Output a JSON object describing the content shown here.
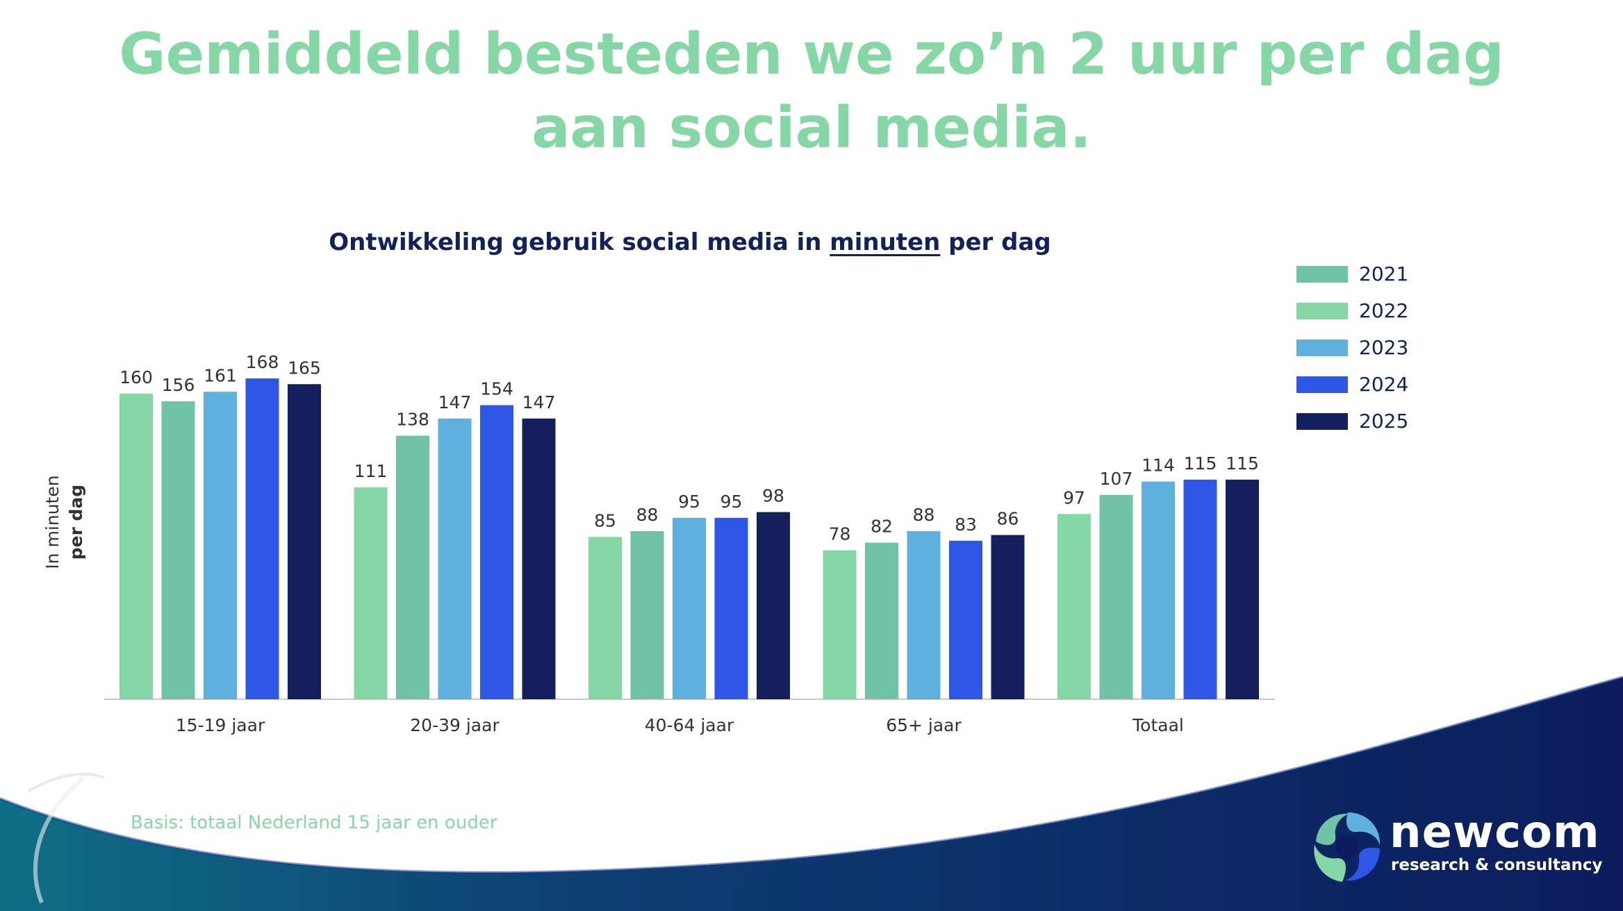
{
  "headline": "Gemiddeld besteden we zo’n 2 uur per dag aan social media.",
  "chart_data": {
    "type": "bar",
    "title_parts": [
      "Ontwikkeling gebruik social media in ",
      "minuten",
      " per dag"
    ],
    "ylabel_lines": [
      "In minuten",
      "per dag"
    ],
    "categories": [
      "15-19 jaar",
      "20-39 jaar",
      "40-64 jaar",
      "65+ jaar",
      "Totaal"
    ],
    "series": [
      {
        "name": "2021",
        "values": [
          160,
          111,
          85,
          78,
          97
        ]
      },
      {
        "name": "2022",
        "values": [
          156,
          138,
          88,
          82,
          107
        ]
      },
      {
        "name": "2023",
        "values": [
          161,
          147,
          95,
          88,
          114
        ]
      },
      {
        "name": "2024",
        "values": [
          168,
          154,
          95,
          83,
          115
        ]
      },
      {
        "name": "2025",
        "values": [
          165,
          147,
          98,
          86,
          115
        ]
      }
    ],
    "bar_colors": [
      "#86d7a6",
      "#70c3a6",
      "#5fb0df",
      "#2e57e6",
      "#13205d"
    ],
    "legend_colors": [
      "#70c3a6",
      "#86d7a6",
      "#5fb0df",
      "#2e57e6",
      "#13205d"
    ],
    "ylim": [
      0,
      168
    ],
    "grid": false,
    "legend_position": "right"
  },
  "footnote": "Basis: totaal Nederland 15 jaar en ouder",
  "logo": {
    "name": "newcom",
    "tagline": "research & consultancy"
  },
  "colors": {
    "headline": "#86d7a6",
    "chart_title": "#12205e",
    "wave_dark": "#0c1c5c",
    "wave_teal": "#0f6f86"
  }
}
